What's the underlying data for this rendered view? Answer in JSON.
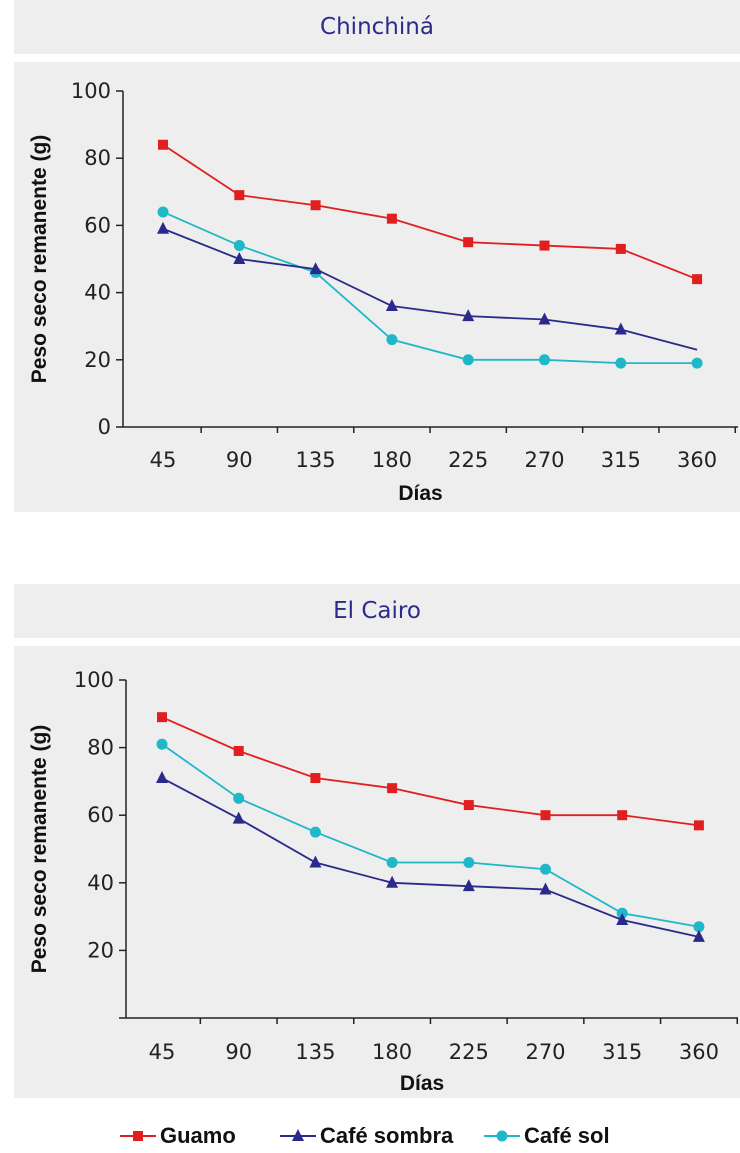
{
  "chart_data": [
    {
      "type": "line",
      "title": "Chinchiná",
      "xlabel": "Días",
      "ylabel": "Peso seco remanente (g)",
      "categories": [
        "45",
        "90",
        "135",
        "180",
        "225",
        "270",
        "315",
        "360"
      ],
      "yticks": [
        "0",
        "20",
        "40",
        "60",
        "80",
        "100"
      ],
      "ylim": [
        0,
        100
      ],
      "grid": false,
      "series": [
        {
          "name": "Guamo",
          "marker": "square",
          "color": "#e02020",
          "values": [
            84,
            69,
            66,
            62,
            55,
            54,
            53,
            44
          ]
        },
        {
          "name": "Café sombra",
          "marker": "triangle",
          "color": "#2a2a8c",
          "values": [
            59,
            50,
            47,
            36,
            33,
            32,
            29,
            23
          ]
        },
        {
          "name": "Café sol",
          "marker": "circle",
          "color": "#20b8c8",
          "values": [
            64,
            54,
            46,
            26,
            20,
            20,
            19,
            19
          ]
        }
      ]
    },
    {
      "type": "line",
      "title": "El Cairo",
      "xlabel": "Días",
      "ylabel": "Peso seco remanente (g)",
      "categories": [
        "45",
        "90",
        "135",
        "180",
        "225",
        "270",
        "315",
        "360"
      ],
      "yticks": [
        "",
        "20",
        "40",
        "60",
        "80",
        "100"
      ],
      "ylim": [
        0,
        100
      ],
      "grid": false,
      "series": [
        {
          "name": "Guamo",
          "marker": "square",
          "color": "#e02020",
          "values": [
            89,
            79,
            71,
            68,
            63,
            60,
            60,
            57
          ]
        },
        {
          "name": "Café sombra",
          "marker": "triangle",
          "color": "#2a2a8c",
          "values": [
            71,
            59,
            46,
            40,
            39,
            38,
            29,
            24
          ]
        },
        {
          "name": "Café sol",
          "marker": "circle",
          "color": "#20b8c8",
          "values": [
            81,
            65,
            55,
            46,
            46,
            44,
            31,
            27
          ]
        }
      ]
    }
  ],
  "legend": {
    "position": "bottom",
    "items": [
      {
        "label": "Guamo",
        "marker": "square",
        "color": "#e02020"
      },
      {
        "label": "Café sombra",
        "marker": "triangle",
        "color": "#2a2a8c"
      },
      {
        "label": "Café sol",
        "marker": "circle",
        "color": "#20b8c8"
      }
    ]
  }
}
